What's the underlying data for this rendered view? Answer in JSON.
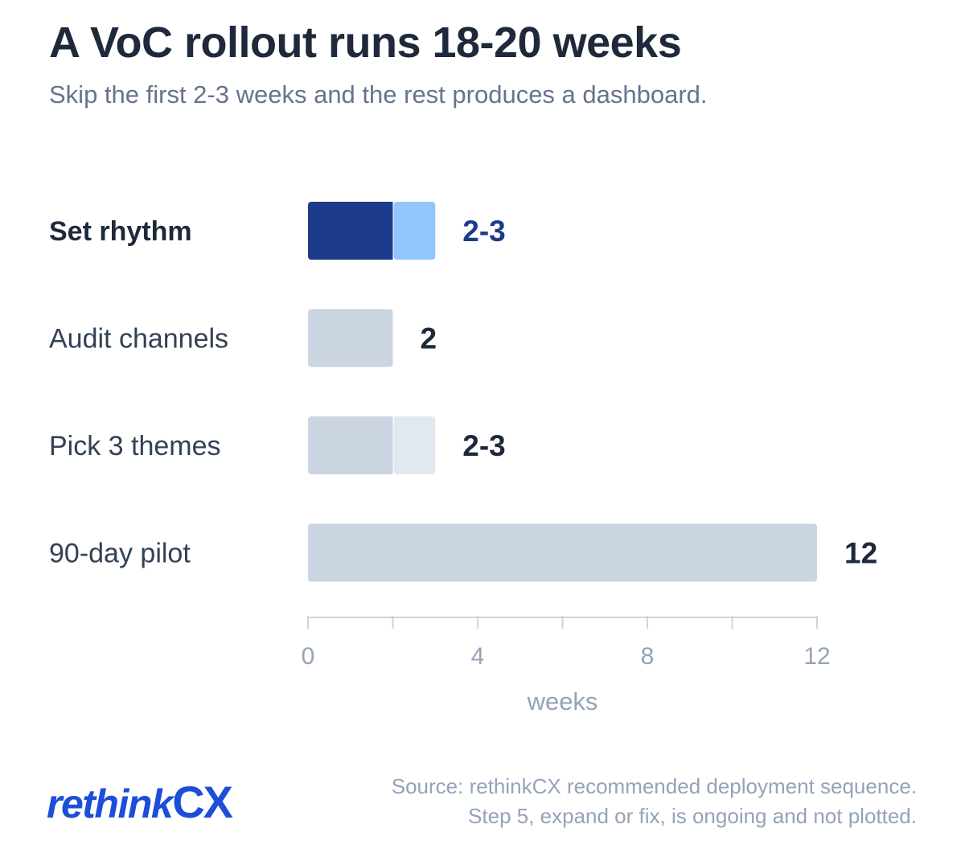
{
  "header": {
    "title": "A VoC rollout runs 18-20 weeks",
    "subtitle": "Skip the first 2-3 weeks and the rest produces a dashboard."
  },
  "footer": {
    "logo_main": "rethink",
    "logo_accent": "CX",
    "source_line1": "Source: rethinkCX recommended deployment sequence.",
    "source_line2": "Step 5, expand or fix, is ongoing and not plotted."
  },
  "chart_data": {
    "type": "bar",
    "orientation": "horizontal",
    "title": "A VoC rollout runs 18-20 weeks",
    "subtitle": "Skip the first 2-3 weeks and the rest produces a dashboard.",
    "xlabel": "weeks",
    "ylabel": "",
    "xlim": [
      0,
      12
    ],
    "xticks": [
      0,
      4,
      8,
      12
    ],
    "minor_ticks": [
      2,
      6,
      10
    ],
    "grid": false,
    "legend": "none",
    "categories": [
      "Set rhythm",
      "Audit channels",
      "Pick 3 themes",
      "90-day pilot"
    ],
    "bars": [
      {
        "label": "Set rhythm",
        "min": 2,
        "max": 3,
        "value_label": "2-3",
        "highlight": true,
        "color_main": "#1e3a8a",
        "color_range": "#93c5fd",
        "label_color": "#1e3a8a"
      },
      {
        "label": "Audit channels",
        "min": 2,
        "max": 2,
        "value_label": "2",
        "highlight": false,
        "color_main": "#cbd5e1",
        "color_range": "#e2e8f0",
        "label_color": "#1e293b"
      },
      {
        "label": "Pick 3 themes",
        "min": 2,
        "max": 3,
        "value_label": "2-3",
        "highlight": false,
        "color_main": "#cbd5e1",
        "color_range": "#e2e8f0",
        "label_color": "#1e293b"
      },
      {
        "label": "90-day pilot",
        "min": 12,
        "max": 12,
        "value_label": "12",
        "highlight": false,
        "color_main": "#cbd5e1",
        "color_range": "#e2e8f0",
        "label_color": "#1e293b"
      }
    ],
    "colors": {
      "title": "#1e293b",
      "subtitle": "#64748b",
      "category_label": "#334155",
      "axis": "#cbd5e1",
      "tick_label": "#94a3b8"
    }
  }
}
